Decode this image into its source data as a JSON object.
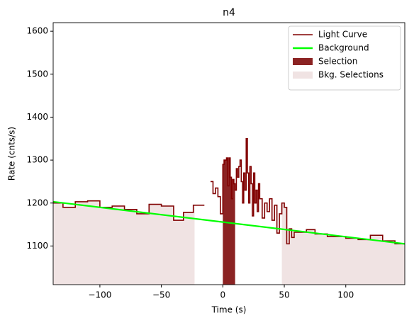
{
  "chart_data": {
    "type": "line",
    "title": "n4",
    "x_label": "Time (s)",
    "y_label": "Rate (cnts/s)",
    "xlim": [
      -138,
      148
    ],
    "ylim": [
      1010,
      1620
    ],
    "xticks": [
      {
        "value": -100,
        "label": "−100"
      },
      {
        "value": -50,
        "label": "−50"
      },
      0,
      50,
      100
    ],
    "yticks": [
      1100,
      1200,
      1300,
      1400,
      1500,
      1600
    ],
    "legend": "upper right",
    "series": [
      {
        "name": "Light Curve",
        "color": "#800000",
        "style": "step",
        "x": [
          -138,
          -130,
          -120,
          -110,
          -100,
          -90,
          -80,
          -70,
          -60,
          -50,
          -40,
          -32,
          -24,
          -15,
          -10,
          -8,
          -6,
          -4,
          -2,
          0,
          1,
          2,
          3,
          4,
          5,
          6,
          7,
          8,
          9,
          10,
          11,
          12,
          13,
          14,
          15,
          16,
          17,
          18,
          19,
          20,
          21,
          22,
          23,
          24,
          25,
          26,
          27,
          28,
          29,
          30,
          32,
          34,
          36,
          38,
          40,
          42,
          44,
          46,
          48,
          50,
          52,
          54,
          56,
          58,
          68,
          75,
          85,
          100,
          110,
          120,
          130,
          140
        ],
        "values": [
          1200,
          1190,
          1203,
          1205,
          1190,
          1193,
          1185,
          1175,
          1197,
          1193,
          1160,
          1178,
          1195,
          null,
          1250,
          1222,
          1235,
          1215,
          1175,
          1290,
          1300,
          1300,
          1305,
          1240,
          1305,
          1260,
          1210,
          1255,
          1245,
          1230,
          1280,
          1260,
          1285,
          1300,
          1250,
          1200,
          1270,
          1230,
          1350,
          1270,
          1200,
          1285,
          1245,
          1170,
          1270,
          1200,
          1230,
          1180,
          1245,
          1210,
          1165,
          1200,
          1180,
          1210,
          1160,
          1195,
          1130,
          1175,
          1200,
          1190,
          1105,
          1140,
          1120,
          1132,
          1138,
          1128,
          1122,
          1118,
          1115,
          1125,
          1112,
          1105
        ]
      },
      {
        "name": "Background",
        "color": "#00ff00",
        "style": "line",
        "x": [
          -138,
          148
        ],
        "values": [
          1203,
          1105
        ]
      }
    ],
    "regions": [
      {
        "name": "Selection",
        "color": "#8b2323",
        "opacity": 1,
        "spans": [
          [
            0,
            10
          ]
        ]
      },
      {
        "name": "Bkg. Selections",
        "color": "#8b2323",
        "opacity": 0.13,
        "spans": [
          [
            -138,
            -23
          ],
          [
            48,
            148
          ]
        ]
      }
    ]
  }
}
